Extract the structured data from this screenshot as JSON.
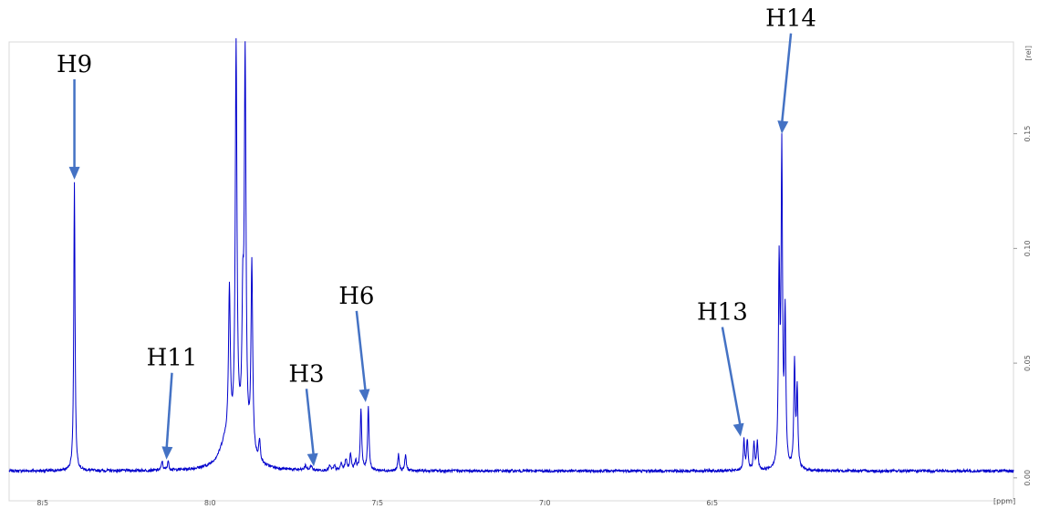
{
  "chart_data": {
    "type": "line",
    "title": "",
    "xlabel": "[ppm]",
    "ylabel": "[rel]",
    "xlim": [
      8.6,
      5.6
    ],
    "x_reversed": true,
    "ylim": [
      -0.01,
      0.19
    ],
    "grid": false,
    "legend": "none",
    "x_ticks": [
      {
        "value": 8.5,
        "label": "8.5"
      },
      {
        "value": 8.0,
        "label": "8.0"
      },
      {
        "value": 7.5,
        "label": "7.5"
      },
      {
        "value": 7.0,
        "label": "7.0"
      },
      {
        "value": 6.5,
        "label": "6.5"
      }
    ],
    "y_ticks": [
      {
        "value": 0.0,
        "label": "0.00"
      },
      {
        "value": 0.05,
        "label": "0.05"
      },
      {
        "value": 0.1,
        "label": "0.10"
      },
      {
        "value": 0.15,
        "label": "0.15"
      }
    ],
    "baseline": 0.003,
    "line_color": "#0000cc",
    "arrow_color": "#4472c4",
    "peaks": [
      {
        "x": 8.405,
        "h": 0.126,
        "w": 0.0022
      },
      {
        "x": 8.143,
        "h": 0.004,
        "w": 0.0025
      },
      {
        "x": 8.125,
        "h": 0.004,
        "w": 0.0025
      },
      {
        "x": 7.955,
        "h": 0.008,
        "w": 0.02
      },
      {
        "x": 7.942,
        "h": 0.065,
        "w": 0.0032
      },
      {
        "x": 7.922,
        "h": 0.17,
        "w": 0.003
      },
      {
        "x": 7.902,
        "h": 0.05,
        "w": 0.003
      },
      {
        "x": 7.895,
        "h": 0.166,
        "w": 0.003
      },
      {
        "x": 7.875,
        "h": 0.083,
        "w": 0.003
      },
      {
        "x": 7.915,
        "h": 0.012,
        "w": 0.03
      },
      {
        "x": 7.852,
        "h": 0.009,
        "w": 0.003
      },
      {
        "x": 7.715,
        "h": 0.002,
        "w": 0.003
      },
      {
        "x": 7.698,
        "h": 0.002,
        "w": 0.003
      },
      {
        "x": 7.642,
        "h": 0.002,
        "w": 0.003
      },
      {
        "x": 7.628,
        "h": 0.002,
        "w": 0.003
      },
      {
        "x": 7.608,
        "h": 0.003,
        "w": 0.003
      },
      {
        "x": 7.594,
        "h": 0.005,
        "w": 0.003
      },
      {
        "x": 7.58,
        "h": 0.007,
        "w": 0.003
      },
      {
        "x": 7.565,
        "h": 0.004,
        "w": 0.003
      },
      {
        "x": 7.549,
        "h": 0.027,
        "w": 0.0025
      },
      {
        "x": 7.527,
        "h": 0.028,
        "w": 0.0025
      },
      {
        "x": 7.437,
        "h": 0.007,
        "w": 0.0025
      },
      {
        "x": 7.416,
        "h": 0.007,
        "w": 0.0025
      },
      {
        "x": 6.405,
        "h": 0.013,
        "w": 0.0025
      },
      {
        "x": 6.395,
        "h": 0.013,
        "w": 0.0025
      },
      {
        "x": 6.375,
        "h": 0.012,
        "w": 0.0025
      },
      {
        "x": 6.365,
        "h": 0.012,
        "w": 0.0025
      },
      {
        "x": 6.3,
        "h": 0.085,
        "w": 0.0025
      },
      {
        "x": 6.292,
        "h": 0.135,
        "w": 0.0025
      },
      {
        "x": 6.282,
        "h": 0.065,
        "w": 0.0025
      },
      {
        "x": 6.254,
        "h": 0.046,
        "w": 0.0025
      },
      {
        "x": 6.246,
        "h": 0.034,
        "w": 0.0025
      }
    ],
    "annotations": [
      {
        "label": "H9",
        "x": 8.405,
        "y": 0.13
      },
      {
        "label": "H11",
        "x": 8.13,
        "y": 0.008
      },
      {
        "label": "H3",
        "x": 7.69,
        "y": 0.005
      },
      {
        "label": "H6",
        "x": 7.535,
        "y": 0.033
      },
      {
        "label": "H13",
        "x": 6.415,
        "y": 0.018
      },
      {
        "label": "H14",
        "x": 6.292,
        "y": 0.15
      }
    ]
  }
}
